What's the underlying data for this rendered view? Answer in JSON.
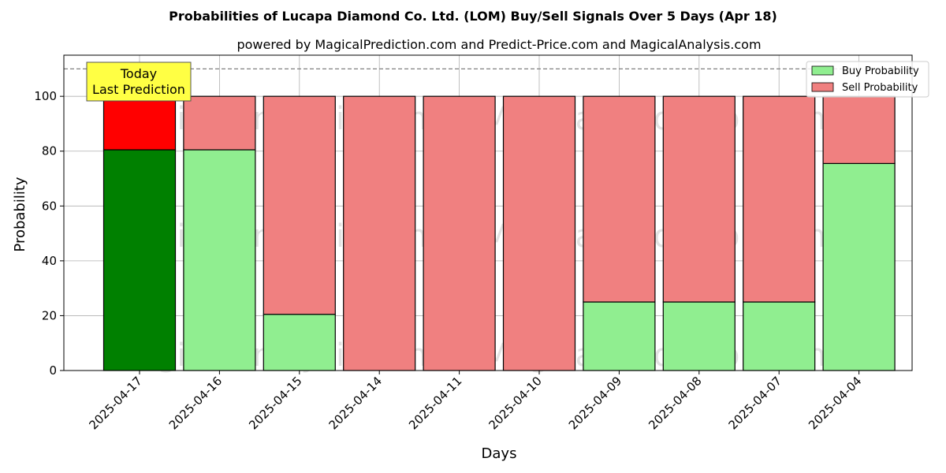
{
  "chart_data": {
    "type": "bar",
    "stacked": true,
    "title": "Probabilities of Lucapa Diamond Co. Ltd. (LOM) Buy/Sell Signals Over 5 Days (Apr 18)",
    "subtitle": "powered by MagicalPrediction.com and Predict-Price.com and MagicalAnalysis.com",
    "xlabel": "Days",
    "ylabel": "Probability",
    "ylim": [
      0,
      115
    ],
    "yticks": [
      0,
      20,
      40,
      60,
      80,
      100
    ],
    "reference_line": 110,
    "categories": [
      "2025-04-17",
      "2025-04-16",
      "2025-04-15",
      "2025-04-14",
      "2025-04-11",
      "2025-04-10",
      "2025-04-09",
      "2025-04-08",
      "2025-04-07",
      "2025-04-04"
    ],
    "series": [
      {
        "name": "Buy Probability",
        "values": [
          80.5,
          80.5,
          20.5,
          0,
          0,
          0,
          25,
          25,
          25,
          75.5
        ]
      },
      {
        "name": "Sell Probability",
        "values": [
          19.5,
          19.5,
          79.5,
          100,
          100,
          100,
          75,
          75,
          75,
          24.5
        ]
      }
    ],
    "legend": {
      "position": "top-right",
      "items": [
        "Buy Probability",
        "Sell Probability"
      ]
    },
    "grid": true,
    "annotation": {
      "category": "2025-04-17",
      "lines": [
        "Today",
        "Last Prediction"
      ]
    },
    "watermarks": [
      "MagicalAnalysis.com",
      "MagicalPrediction.com"
    ],
    "colors": {
      "buy": "#90ee90",
      "sell": "#f08080",
      "buy_highlight": "#008000",
      "sell_highlight": "#ff0000",
      "annotation_bg": "#ffff44",
      "grid": "#b0b0b0",
      "reference_line": "#808080"
    }
  }
}
